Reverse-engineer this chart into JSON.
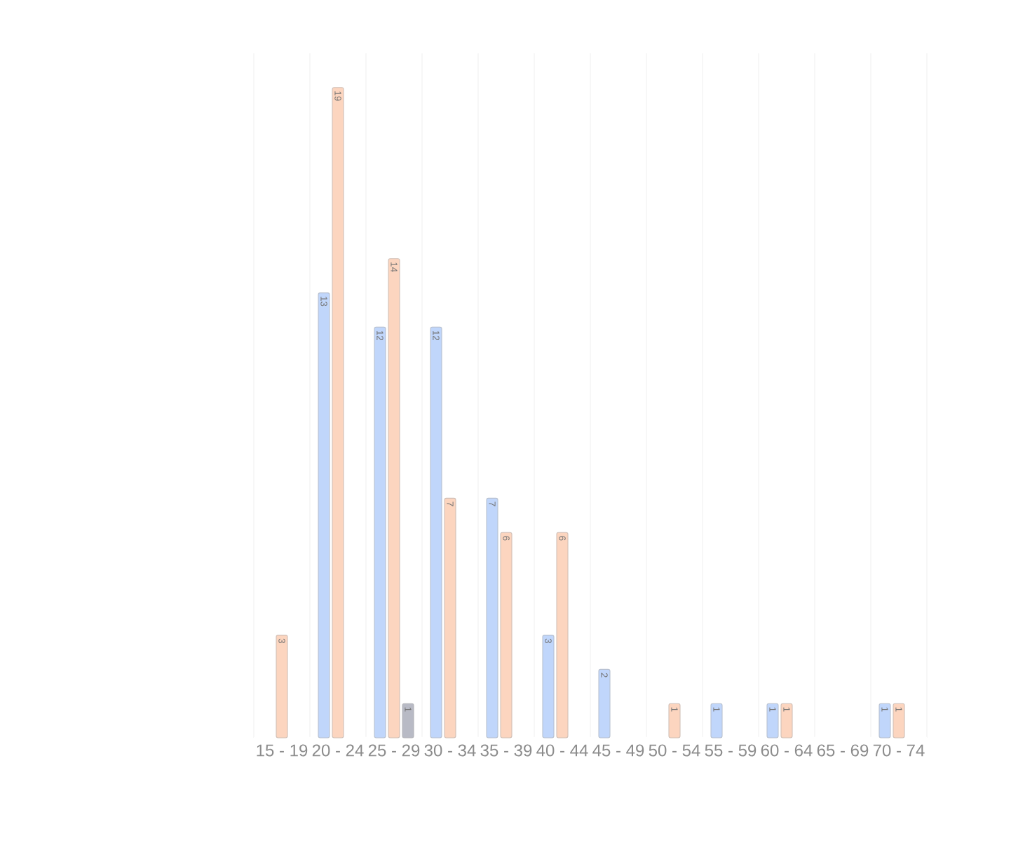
{
  "chart_data": {
    "type": "bar",
    "categories": [
      "15 - 19",
      "20 - 24",
      "25 - 29",
      "30 - 34",
      "35 - 39",
      "40 - 44",
      "45 - 49",
      "50 - 54",
      "55 - 59",
      "60 - 64",
      "65 - 69",
      "70 - 74"
    ],
    "series": [
      {
        "color": "#c0d6fb",
        "values": [
          null,
          13,
          12,
          12,
          7,
          3,
          2,
          null,
          1,
          1,
          null,
          1
        ]
      },
      {
        "color": "#fcd5bf",
        "values": [
          3,
          19,
          14,
          7,
          6,
          6,
          null,
          1,
          null,
          1,
          null,
          1
        ]
      },
      {
        "color": "#b8bac5",
        "values": [
          null,
          null,
          1,
          null,
          null,
          null,
          null,
          null,
          null,
          null,
          null,
          null
        ]
      }
    ],
    "ylim": [
      0,
      20
    ],
    "tick_labels": "x",
    "grid": "x",
    "data_labels": true
  }
}
